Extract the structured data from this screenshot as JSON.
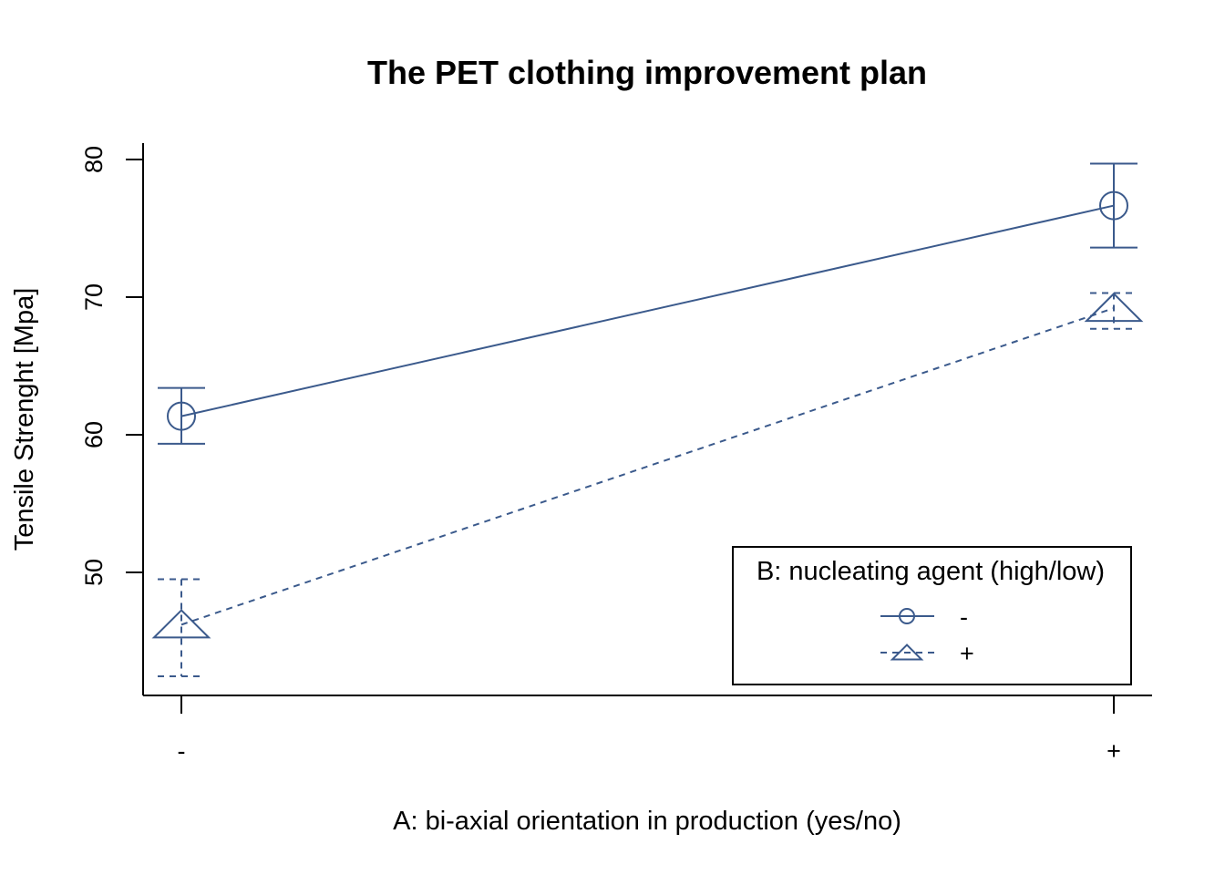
{
  "chart_data": {
    "type": "line",
    "title": "The PET clothing improvement plan",
    "xlabel": "A: bi-axial orientation in production (yes/no)",
    "ylabel": "Tensile Strenght [Mpa]",
    "categories": [
      "-",
      "+"
    ],
    "yticks": [
      50,
      60,
      70,
      80
    ],
    "ylim": [
      41,
      81.2
    ],
    "grid": false,
    "legend": {
      "title": "B: nucleating agent (high/low)",
      "position": "bottom-right"
    },
    "color": "#3B5A8C",
    "series": [
      {
        "name": "-",
        "marker": "circle",
        "line_style": "solid",
        "values": [
          61.35,
          76.65
        ],
        "error_low": [
          59.35,
          73.6
        ],
        "error_high": [
          63.4,
          79.7
        ]
      },
      {
        "name": "+",
        "marker": "triangle",
        "line_style": "dashed",
        "values": [
          46.2,
          69.2
        ],
        "error_low": [
          42.45,
          67.7
        ],
        "error_high": [
          49.5,
          70.3
        ]
      }
    ]
  }
}
